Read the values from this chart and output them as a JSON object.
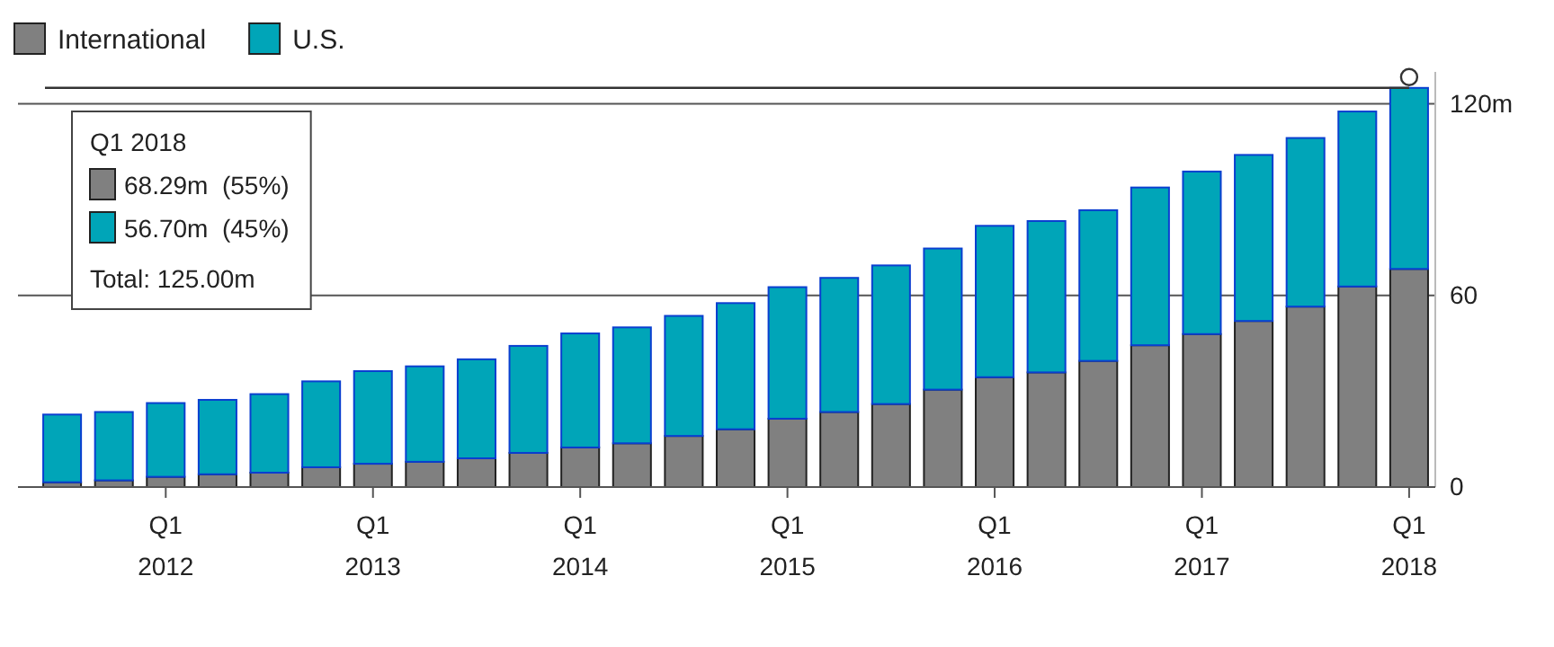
{
  "chart_data": {
    "type": "bar",
    "stacked": true,
    "categories": [
      null,
      null,
      "Q1\n2012",
      null,
      null,
      null,
      "Q1\n2013",
      null,
      null,
      null,
      "Q1\n2014",
      null,
      null,
      null,
      "Q1\n2015",
      null,
      null,
      null,
      "Q1\n2016",
      null,
      null,
      null,
      "Q1\n2017",
      null,
      null,
      null,
      "Q1\n2018"
    ],
    "series": [
      {
        "name": "International",
        "color": "#808080",
        "values": [
          1.5,
          2.1,
          3.2,
          4.0,
          4.5,
          6.2,
          7.3,
          7.9,
          9.0,
          10.7,
          12.4,
          13.7,
          16.0,
          18.1,
          21.4,
          23.5,
          26.0,
          30.5,
          34.4,
          35.9,
          39.5,
          44.4,
          47.9,
          52.0,
          56.5,
          62.8,
          68.29
        ]
      },
      {
        "name": "U.S.",
        "color": "#00a5b8",
        "values": [
          21.2,
          21.4,
          23.1,
          23.3,
          24.6,
          26.9,
          29.0,
          29.9,
          31.0,
          33.5,
          35.7,
          36.3,
          37.6,
          39.5,
          41.2,
          42.0,
          43.4,
          44.2,
          47.4,
          47.4,
          47.2,
          49.4,
          50.9,
          52.0,
          52.8,
          54.8,
          56.7
        ]
      }
    ],
    "ylim": [
      0,
      130
    ],
    "yticks": [
      0,
      60,
      {
        "value": 120,
        "label": "120m"
      }
    ],
    "grid": "y",
    "legend": "top left",
    "ref_lines": [
      {
        "axis": "y",
        "value": 125,
        "label": null,
        "color": "#333333"
      }
    ],
    "annotations": [
      "Q1 2018",
      "68.29m  (55%)",
      "56.70m  (45%)",
      "Total: 125.00m"
    ]
  }
}
